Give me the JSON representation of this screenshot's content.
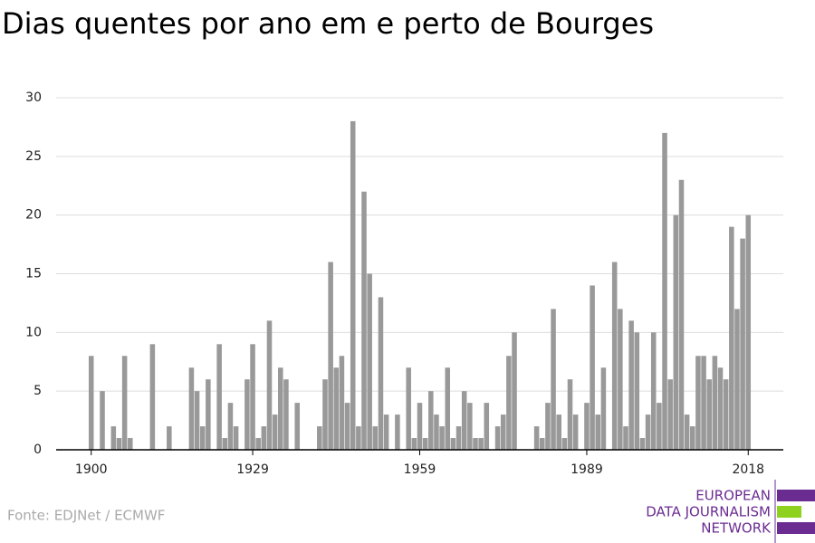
{
  "chart_data": {
    "type": "bar",
    "title": "Dias quentes por ano em e perto de Bourges",
    "source": "Fonte: EDJNet / ECMWF",
    "logo": [
      "EUROPEAN",
      "DATA JOURNALISM",
      "NETWORK"
    ],
    "color": "#999999",
    "x": [
      1900,
      1901,
      1902,
      1903,
      1904,
      1905,
      1906,
      1907,
      1908,
      1909,
      1910,
      1911,
      1912,
      1913,
      1914,
      1915,
      1916,
      1917,
      1918,
      1919,
      1920,
      1921,
      1922,
      1923,
      1924,
      1925,
      1926,
      1927,
      1928,
      1929,
      1930,
      1931,
      1932,
      1933,
      1934,
      1935,
      1936,
      1937,
      1938,
      1939,
      1940,
      1941,
      1942,
      1943,
      1944,
      1945,
      1946,
      1947,
      1948,
      1949,
      1950,
      1951,
      1952,
      1953,
      1954,
      1955,
      1956,
      1957,
      1958,
      1959,
      1960,
      1961,
      1962,
      1963,
      1964,
      1965,
      1966,
      1967,
      1968,
      1969,
      1970,
      1971,
      1972,
      1973,
      1974,
      1975,
      1976,
      1977,
      1978,
      1979,
      1980,
      1981,
      1982,
      1983,
      1984,
      1985,
      1986,
      1987,
      1988,
      1989,
      1990,
      1991,
      1992,
      1993,
      1994,
      1995,
      1996,
      1997,
      1998,
      1999,
      2000,
      2001,
      2002,
      2003,
      2004,
      2005,
      2006,
      2007,
      2008,
      2009,
      2010,
      2011,
      2012,
      2013,
      2014,
      2015,
      2016,
      2017,
      2018
    ],
    "values": [
      8,
      0,
      5,
      0,
      2,
      1,
      8,
      1,
      0,
      0,
      0,
      9,
      0,
      0,
      2,
      0,
      0,
      0,
      7,
      5,
      2,
      6,
      0,
      9,
      1,
      4,
      2,
      0,
      6,
      9,
      1,
      2,
      11,
      3,
      7,
      6,
      0,
      4,
      0,
      0,
      0,
      2,
      6,
      16,
      7,
      8,
      4,
      28,
      2,
      22,
      15,
      2,
      13,
      3,
      0,
      3,
      0,
      7,
      1,
      4,
      1,
      5,
      3,
      2,
      7,
      1,
      2,
      5,
      4,
      1,
      1,
      4,
      0,
      2,
      3,
      8,
      10,
      0,
      0,
      0,
      2,
      1,
      4,
      12,
      3,
      1,
      6,
      3,
      0,
      4,
      14,
      3,
      7,
      0,
      16,
      12,
      2,
      11,
      10,
      1,
      3,
      10,
      4,
      27,
      6,
      20,
      23,
      3,
      2,
      8,
      8,
      6,
      8,
      7,
      6,
      19,
      12,
      18,
      20
    ],
    "xlim": [
      1893.7,
      2024.3
    ],
    "xticks": [
      1900,
      1929,
      1959,
      1989,
      2018
    ],
    "ylim": [
      0,
      30
    ],
    "yticks": [
      0,
      5,
      10,
      15,
      20,
      25,
      30
    ],
    "grid": true
  }
}
